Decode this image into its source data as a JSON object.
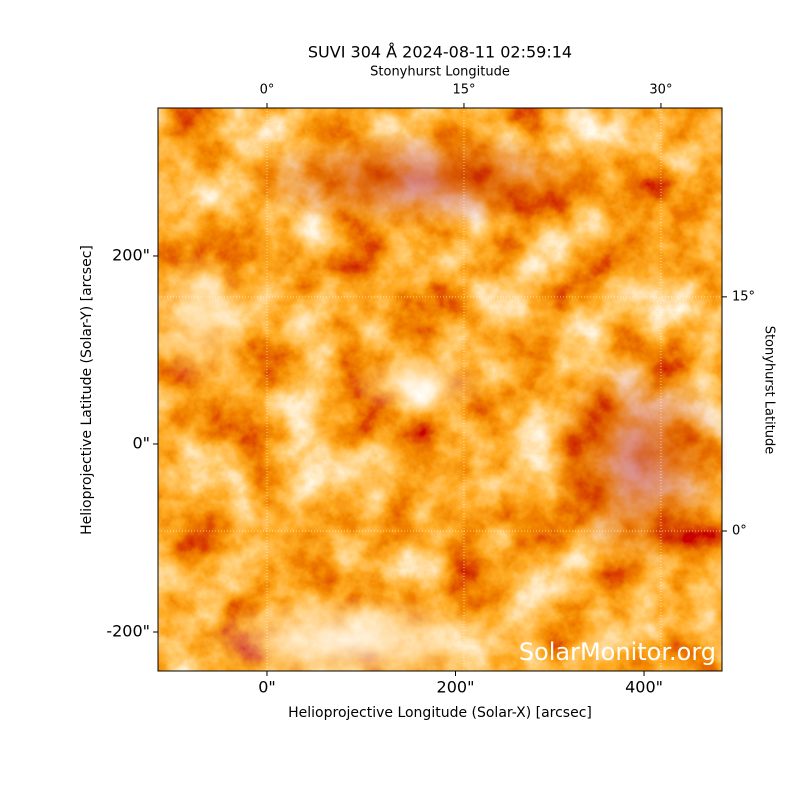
{
  "chart_data": {
    "type": "image",
    "title": "SUVI 304 Å 2024-08-11 02:59:14",
    "xlabel": "Helioprojective Longitude (Solar-X) [arcsec]",
    "ylabel": "Helioprojective Latitude (Solar-Y) [arcsec]",
    "x2label": "Stonyhurst Longitude",
    "y2label": "Stonyhurst Latitude",
    "watermark": "SolarMonitor.org",
    "xlim": [
      -115.6,
      482.7
    ],
    "ylim": [
      -241.5,
      357.4
    ],
    "xticks": [
      {
        "value": 0,
        "label": "0\""
      },
      {
        "value": 200,
        "label": "200\""
      },
      {
        "value": 400,
        "label": "400\""
      }
    ],
    "yticks": [
      {
        "value": -200,
        "label": "-200\""
      },
      {
        "value": 0,
        "label": "0\""
      },
      {
        "value": 200,
        "label": "200\""
      }
    ],
    "x2lim": [
      -8.3,
      34.65
    ],
    "x2ticks": [
      {
        "value": 0,
        "label": "0°"
      },
      {
        "value": 15,
        "label": "15°"
      },
      {
        "value": 30,
        "label": "30°"
      }
    ],
    "y2lim": [
      -8.97,
      27.1
    ],
    "y2ticks": [
      {
        "value": 0,
        "label": "0°"
      },
      {
        "value": 15,
        "label": "15°"
      }
    ],
    "grid": true
  }
}
